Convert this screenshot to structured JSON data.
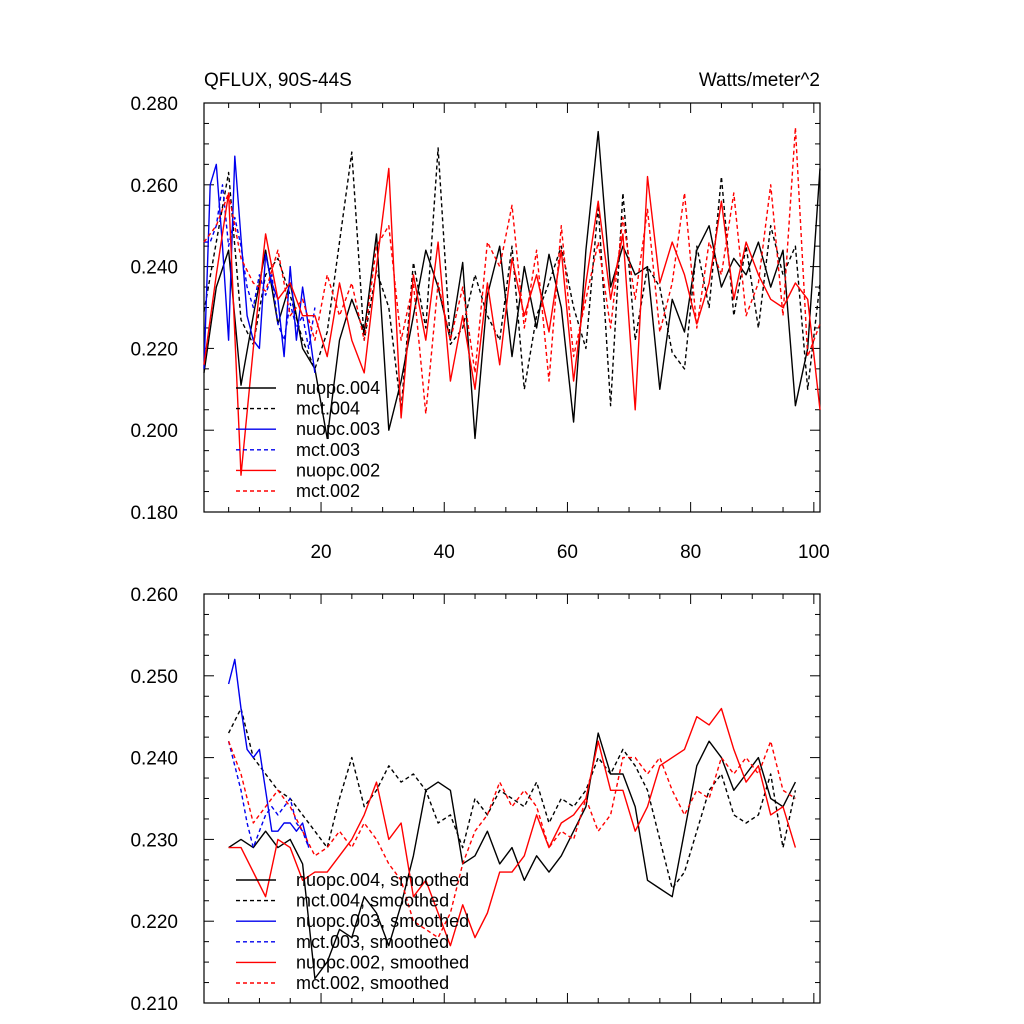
{
  "figure": {
    "title_left": "QFLUX, 90S-44S",
    "title_right": "Watts/meter^2"
  },
  "chart_data": [
    {
      "type": "line",
      "xlim": [
        1,
        101
      ],
      "ylim": [
        0.18,
        0.28
      ],
      "xticks": [
        20,
        40,
        60,
        80,
        100
      ],
      "yticks": [
        0.18,
        0.2,
        0.22,
        0.24,
        0.26,
        0.28
      ],
      "ytick_labels": [
        "0.180",
        "0.200",
        "0.220",
        "0.240",
        "0.260",
        "0.280"
      ],
      "xtick_labels": [
        "20",
        "40",
        "60",
        "80",
        "100"
      ],
      "legend_position": "lower-left",
      "series": [
        {
          "name": "nuopc.004",
          "color": "#000000",
          "dash": "solid",
          "x": [
            1,
            3,
            5,
            7,
            9,
            11,
            13,
            15,
            17,
            19,
            21,
            23,
            25,
            27,
            29,
            31,
            33,
            35,
            37,
            39,
            41,
            43,
            45,
            47,
            49,
            51,
            53,
            55,
            57,
            59,
            61,
            63,
            65,
            67,
            69,
            71,
            73,
            75,
            77,
            79,
            81,
            83,
            85,
            87,
            89,
            91,
            93,
            95,
            97,
            99,
            101
          ],
          "y": [
            0.214,
            0.235,
            0.244,
            0.211,
            0.228,
            0.244,
            0.226,
            0.236,
            0.22,
            0.215,
            0.198,
            0.222,
            0.232,
            0.224,
            0.248,
            0.2,
            0.212,
            0.228,
            0.244,
            0.235,
            0.222,
            0.241,
            0.198,
            0.233,
            0.245,
            0.218,
            0.24,
            0.225,
            0.243,
            0.23,
            0.202,
            0.244,
            0.273,
            0.235,
            0.245,
            0.238,
            0.24,
            0.21,
            0.232,
            0.224,
            0.244,
            0.25,
            0.235,
            0.242,
            0.238,
            0.246,
            0.235,
            0.244,
            0.206,
            0.22,
            0.264
          ]
        },
        {
          "name": "mct.004",
          "color": "#000000",
          "dash": "dash",
          "x": [
            1,
            3,
            5,
            7,
            9,
            11,
            13,
            15,
            17,
            19,
            21,
            23,
            25,
            27,
            29,
            31,
            33,
            35,
            37,
            39,
            41,
            43,
            45,
            47,
            49,
            51,
            53,
            55,
            57,
            59,
            61,
            63,
            65,
            67,
            69,
            71,
            73,
            75,
            77,
            79,
            81,
            83,
            85,
            87,
            89,
            91,
            93,
            95,
            97,
            99,
            101
          ],
          "y": [
            0.229,
            0.246,
            0.263,
            0.227,
            0.221,
            0.238,
            0.242,
            0.233,
            0.222,
            0.215,
            0.224,
            0.246,
            0.268,
            0.222,
            0.239,
            0.23,
            0.205,
            0.241,
            0.225,
            0.269,
            0.221,
            0.225,
            0.238,
            0.228,
            0.222,
            0.245,
            0.21,
            0.228,
            0.236,
            0.245,
            0.23,
            0.22,
            0.255,
            0.206,
            0.258,
            0.222,
            0.24,
            0.235,
            0.219,
            0.215,
            0.245,
            0.23,
            0.262,
            0.228,
            0.245,
            0.225,
            0.25,
            0.238,
            0.245,
            0.21,
            0.236
          ]
        },
        {
          "name": "nuopc.003",
          "color": "#0000ee",
          "dash": "solid",
          "x": [
            1,
            2,
            3,
            4,
            5,
            6,
            7,
            8,
            9,
            10,
            11,
            12,
            13,
            14,
            15,
            16,
            17,
            18,
            19
          ],
          "y": [
            0.215,
            0.26,
            0.265,
            0.245,
            0.222,
            0.267,
            0.247,
            0.228,
            0.222,
            0.22,
            0.243,
            0.236,
            0.232,
            0.218,
            0.24,
            0.222,
            0.235,
            0.225,
            0.214
          ]
        },
        {
          "name": "mct.003",
          "color": "#0000ee",
          "dash": "dash",
          "x": [
            1,
            2,
            3,
            4,
            5,
            6,
            7,
            8,
            9,
            10,
            11,
            12,
            13,
            14,
            15,
            16,
            17,
            18,
            19
          ],
          "y": [
            0.246,
            0.246,
            0.25,
            0.26,
            0.245,
            0.252,
            0.245,
            0.235,
            0.23,
            0.238,
            0.233,
            0.238,
            0.226,
            0.222,
            0.231,
            0.225,
            0.228,
            0.22,
            0.23
          ]
        },
        {
          "name": "nuopc.002",
          "color": "#ff0000",
          "dash": "solid",
          "x": [
            1,
            3,
            5,
            7,
            9,
            11,
            13,
            15,
            17,
            19,
            21,
            23,
            25,
            27,
            29,
            31,
            33,
            35,
            37,
            39,
            41,
            43,
            45,
            47,
            49,
            51,
            53,
            55,
            57,
            59,
            61,
            63,
            65,
            67,
            69,
            71,
            73,
            75,
            77,
            79,
            81,
            83,
            85,
            87,
            89,
            91,
            93,
            95,
            97,
            99,
            101
          ],
          "y": [
            0.216,
            0.238,
            0.258,
            0.189,
            0.22,
            0.248,
            0.232,
            0.236,
            0.228,
            0.228,
            0.218,
            0.236,
            0.222,
            0.214,
            0.24,
            0.264,
            0.203,
            0.238,
            0.222,
            0.246,
            0.212,
            0.228,
            0.21,
            0.236,
            0.216,
            0.242,
            0.228,
            0.238,
            0.224,
            0.244,
            0.212,
            0.236,
            0.256,
            0.232,
            0.248,
            0.205,
            0.262,
            0.236,
            0.246,
            0.238,
            0.226,
            0.236,
            0.256,
            0.232,
            0.246,
            0.238,
            0.232,
            0.23,
            0.236,
            0.232,
            0.205
          ]
        },
        {
          "name": "mct.002",
          "color": "#ff0000",
          "dash": "dash",
          "x": [
            1,
            3,
            5,
            7,
            9,
            11,
            13,
            15,
            17,
            19,
            21,
            23,
            25,
            27,
            29,
            31,
            33,
            35,
            37,
            39,
            41,
            43,
            45,
            47,
            49,
            51,
            53,
            55,
            57,
            59,
            61,
            63,
            65,
            67,
            69,
            71,
            73,
            75,
            77,
            79,
            81,
            83,
            85,
            87,
            89,
            91,
            93,
            95,
            97,
            99,
            101
          ],
          "y": [
            0.246,
            0.25,
            0.258,
            0.242,
            0.236,
            0.234,
            0.244,
            0.228,
            0.232,
            0.222,
            0.238,
            0.228,
            0.236,
            0.222,
            0.245,
            0.25,
            0.222,
            0.236,
            0.204,
            0.236,
            0.222,
            0.235,
            0.214,
            0.246,
            0.24,
            0.255,
            0.225,
            0.244,
            0.212,
            0.25,
            0.218,
            0.232,
            0.246,
            0.225,
            0.252,
            0.232,
            0.254,
            0.224,
            0.236,
            0.258,
            0.225,
            0.246,
            0.238,
            0.258,
            0.228,
            0.236,
            0.26,
            0.228,
            0.274,
            0.218,
            0.226
          ]
        }
      ]
    },
    {
      "type": "line",
      "xlim": [
        1,
        101
      ],
      "ylim": [
        0.21,
        0.26
      ],
      "xticks": [
        20,
        40,
        60,
        80,
        100
      ],
      "yticks": [
        0.21,
        0.22,
        0.23,
        0.24,
        0.25,
        0.26
      ],
      "ytick_labels": [
        "0.210",
        "0.220",
        "0.230",
        "0.240",
        "0.250",
        "0.260"
      ],
      "legend_position": "lower-left",
      "series": [
        {
          "name": "nuopc.004, smoothed",
          "color": "#000000",
          "dash": "solid",
          "x": [
            5,
            7,
            9,
            11,
            13,
            15,
            17,
            19,
            21,
            23,
            25,
            27,
            29,
            31,
            33,
            35,
            37,
            39,
            41,
            43,
            45,
            47,
            49,
            51,
            53,
            55,
            57,
            59,
            61,
            63,
            65,
            67,
            69,
            71,
            73,
            75,
            77,
            79,
            81,
            83,
            85,
            87,
            89,
            91,
            93,
            95,
            97
          ],
          "y": [
            0.229,
            0.23,
            0.229,
            0.231,
            0.229,
            0.23,
            0.227,
            0.213,
            0.215,
            0.219,
            0.218,
            0.223,
            0.221,
            0.217,
            0.222,
            0.228,
            0.236,
            0.237,
            0.236,
            0.227,
            0.228,
            0.231,
            0.227,
            0.229,
            0.225,
            0.228,
            0.226,
            0.228,
            0.231,
            0.234,
            0.243,
            0.238,
            0.238,
            0.234,
            0.225,
            0.224,
            0.223,
            0.231,
            0.239,
            0.242,
            0.24,
            0.236,
            0.238,
            0.24,
            0.235,
            0.234,
            0.237
          ]
        },
        {
          "name": "mct.004, smoothed",
          "color": "#000000",
          "dash": "dash",
          "x": [
            5,
            7,
            9,
            11,
            13,
            15,
            17,
            19,
            21,
            23,
            25,
            27,
            29,
            31,
            33,
            35,
            37,
            39,
            41,
            43,
            45,
            47,
            49,
            51,
            53,
            55,
            57,
            59,
            61,
            63,
            65,
            67,
            69,
            71,
            73,
            75,
            77,
            79,
            81,
            83,
            85,
            87,
            89,
            91,
            93,
            95,
            97
          ],
          "y": [
            0.243,
            0.246,
            0.24,
            0.238,
            0.236,
            0.235,
            0.233,
            0.231,
            0.229,
            0.235,
            0.24,
            0.234,
            0.236,
            0.239,
            0.237,
            0.238,
            0.236,
            0.232,
            0.233,
            0.229,
            0.235,
            0.233,
            0.236,
            0.235,
            0.234,
            0.237,
            0.232,
            0.235,
            0.234,
            0.236,
            0.24,
            0.238,
            0.241,
            0.239,
            0.236,
            0.23,
            0.224,
            0.226,
            0.231,
            0.236,
            0.238,
            0.233,
            0.232,
            0.233,
            0.238,
            0.229,
            0.236
          ]
        },
        {
          "name": "nuopc.003, smoothed",
          "color": "#0000ee",
          "dash": "solid",
          "x": [
            5,
            6,
            7,
            8,
            9,
            10,
            11,
            12,
            13,
            14,
            15,
            16,
            17,
            18
          ],
          "y": [
            0.249,
            0.252,
            0.246,
            0.241,
            0.24,
            0.241,
            0.236,
            0.231,
            0.231,
            0.232,
            0.232,
            0.231,
            0.232,
            0.229
          ]
        },
        {
          "name": "mct.003, smoothed",
          "color": "#0000ee",
          "dash": "dash",
          "x": [
            5,
            6,
            7,
            8,
            9,
            10,
            11,
            12,
            13,
            14,
            15,
            16,
            17,
            18
          ],
          "y": [
            0.242,
            0.239,
            0.236,
            0.232,
            0.229,
            0.231,
            0.233,
            0.234,
            0.233,
            0.234,
            0.235,
            0.232,
            0.231,
            0.229
          ]
        },
        {
          "name": "nuopc.002, smoothed",
          "color": "#ff0000",
          "dash": "solid",
          "x": [
            5,
            7,
            9,
            11,
            13,
            15,
            17,
            19,
            21,
            23,
            25,
            27,
            29,
            31,
            33,
            35,
            37,
            39,
            41,
            43,
            45,
            47,
            49,
            51,
            53,
            55,
            57,
            59,
            61,
            63,
            65,
            67,
            69,
            71,
            73,
            75,
            77,
            79,
            81,
            83,
            85,
            87,
            89,
            91,
            93,
            95,
            97
          ],
          "y": [
            0.229,
            0.229,
            0.226,
            0.223,
            0.23,
            0.229,
            0.225,
            0.226,
            0.226,
            0.228,
            0.23,
            0.233,
            0.237,
            0.23,
            0.232,
            0.223,
            0.225,
            0.221,
            0.217,
            0.222,
            0.218,
            0.221,
            0.226,
            0.226,
            0.228,
            0.233,
            0.229,
            0.232,
            0.233,
            0.235,
            0.242,
            0.236,
            0.236,
            0.231,
            0.234,
            0.239,
            0.24,
            0.241,
            0.245,
            0.244,
            0.246,
            0.241,
            0.237,
            0.239,
            0.233,
            0.234,
            0.229
          ]
        },
        {
          "name": "mct.002, smoothed",
          "color": "#ff0000",
          "dash": "dash",
          "x": [
            5,
            7,
            9,
            11,
            13,
            15,
            17,
            19,
            21,
            23,
            25,
            27,
            29,
            31,
            33,
            35,
            37,
            39,
            41,
            43,
            45,
            47,
            49,
            51,
            53,
            55,
            57,
            59,
            61,
            63,
            65,
            67,
            69,
            71,
            73,
            75,
            77,
            79,
            81,
            83,
            85,
            87,
            89,
            91,
            93,
            95,
            97
          ],
          "y": [
            0.242,
            0.238,
            0.232,
            0.234,
            0.236,
            0.234,
            0.231,
            0.228,
            0.229,
            0.231,
            0.229,
            0.232,
            0.23,
            0.227,
            0.225,
            0.22,
            0.219,
            0.218,
            0.221,
            0.227,
            0.231,
            0.233,
            0.237,
            0.234,
            0.236,
            0.234,
            0.229,
            0.231,
            0.23,
            0.235,
            0.231,
            0.233,
            0.24,
            0.24,
            0.238,
            0.24,
            0.236,
            0.233,
            0.236,
            0.235,
            0.24,
            0.238,
            0.24,
            0.238,
            0.242,
            0.236,
            0.235
          ]
        }
      ]
    }
  ]
}
